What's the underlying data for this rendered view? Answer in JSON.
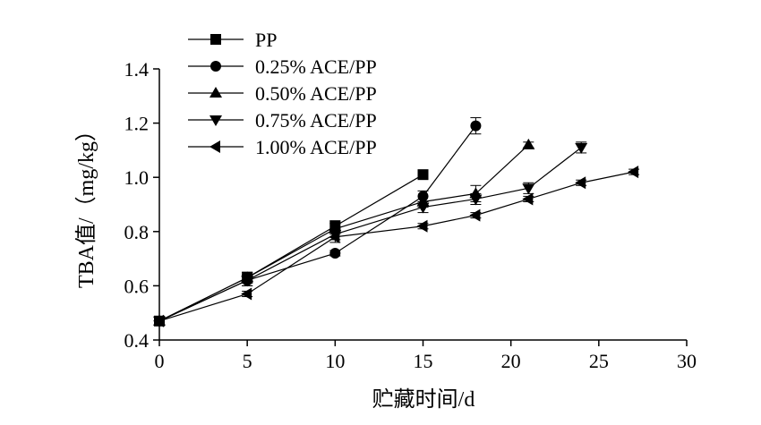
{
  "chart_data": {
    "type": "line",
    "xlabel": "贮藏时间/d",
    "ylabel": "TBA值/（mg/kg）",
    "xlim": [
      0,
      30
    ],
    "ylim": [
      0.4,
      1.4
    ],
    "xticks": [
      "0",
      "5",
      "10",
      "15",
      "20",
      "25",
      "30"
    ],
    "yticks": [
      "0.4",
      "0.6",
      "0.8",
      "1.0",
      "1.2",
      "1.4"
    ],
    "grid": false,
    "legend_position": "top-left",
    "series": [
      {
        "name": "PP",
        "marker": "square",
        "x": [
          0,
          5,
          10,
          15
        ],
        "y": [
          0.47,
          0.63,
          0.82,
          1.01
        ],
        "err": [
          0.01,
          0.02,
          0.02,
          0.01
        ]
      },
      {
        "name": "0.25% ACE/PP",
        "marker": "circle",
        "x": [
          0,
          5,
          10,
          15,
          18
        ],
        "y": [
          0.47,
          0.62,
          0.72,
          0.93,
          1.19
        ],
        "err": [
          0.01,
          0.02,
          0.01,
          0.02,
          0.03
        ]
      },
      {
        "name": "0.50% ACE/PP",
        "marker": "triangle-up",
        "x": [
          0,
          5,
          10,
          15,
          18,
          21
        ],
        "y": [
          0.47,
          0.63,
          0.81,
          0.91,
          0.94,
          1.12
        ],
        "err": [
          0.01,
          0.02,
          0.02,
          0.02,
          0.03,
          0.01
        ]
      },
      {
        "name": "0.75% ACE/PP",
        "marker": "triangle-down",
        "x": [
          0,
          5,
          10,
          15,
          18,
          21,
          24
        ],
        "y": [
          0.47,
          0.62,
          0.79,
          0.89,
          0.92,
          0.96,
          1.11
        ],
        "err": [
          0.01,
          0.02,
          0.02,
          0.02,
          0.02,
          0.02,
          0.02
        ]
      },
      {
        "name": "1.00% ACE/PP",
        "marker": "triangle-left",
        "x": [
          0,
          5,
          10,
          15,
          18,
          21,
          24,
          27
        ],
        "y": [
          0.47,
          0.57,
          0.78,
          0.82,
          0.86,
          0.92,
          0.98,
          1.02
        ],
        "err": [
          0.01,
          0.01,
          0.02,
          0.01,
          0.01,
          0.01,
          0.01,
          0.01
        ]
      }
    ]
  }
}
